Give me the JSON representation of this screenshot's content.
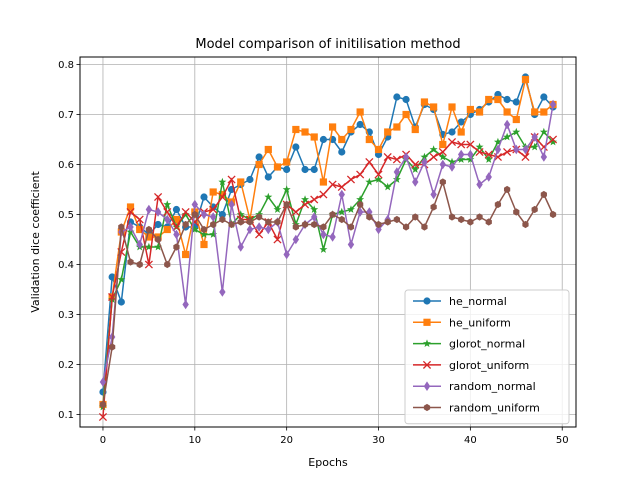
{
  "chart_data": {
    "type": "line",
    "title": "Model comparison of initilisation method",
    "xlabel": "Epochs",
    "ylabel": "Validation dice coefficient",
    "xlim": [
      -2.5,
      51.5
    ],
    "ylim": [
      0.075,
      0.815
    ],
    "xticks": [
      0,
      10,
      20,
      30,
      40,
      50
    ],
    "yticks": [
      0.1,
      0.2,
      0.3,
      0.4,
      0.5,
      0.6,
      0.7,
      0.8
    ],
    "grid": true,
    "legend_position": "lower-right",
    "x": [
      0,
      1,
      2,
      3,
      4,
      5,
      6,
      7,
      8,
      9,
      10,
      11,
      12,
      13,
      14,
      15,
      16,
      17,
      18,
      19,
      20,
      21,
      22,
      23,
      24,
      25,
      26,
      27,
      28,
      29,
      30,
      31,
      32,
      33,
      34,
      35,
      36,
      37,
      38,
      39,
      40,
      41,
      42,
      43,
      44,
      45,
      46,
      47,
      48,
      49
    ],
    "series": [
      {
        "name": "he_normal",
        "color": "#1f77b4",
        "marker": "circle",
        "values": [
          0.145,
          0.375,
          0.325,
          0.485,
          0.475,
          0.46,
          0.48,
          0.475,
          0.51,
          0.475,
          0.475,
          0.535,
          0.515,
          0.5,
          0.55,
          0.56,
          0.57,
          0.615,
          0.575,
          0.595,
          0.59,
          0.635,
          0.59,
          0.59,
          0.65,
          0.65,
          0.625,
          0.665,
          0.68,
          0.665,
          0.62,
          0.655,
          0.735,
          0.73,
          0.675,
          0.72,
          0.71,
          0.66,
          0.665,
          0.685,
          0.7,
          0.71,
          0.725,
          0.74,
          0.73,
          0.725,
          0.775,
          0.7,
          0.735,
          0.715
        ]
      },
      {
        "name": "he_uniform",
        "color": "#ff7f0e",
        "marker": "square",
        "values": [
          0.12,
          0.335,
          0.465,
          0.515,
          0.47,
          0.455,
          0.455,
          0.47,
          0.49,
          0.42,
          0.505,
          0.44,
          0.545,
          0.54,
          0.525,
          0.565,
          0.49,
          0.6,
          0.63,
          0.595,
          0.605,
          0.67,
          0.665,
          0.655,
          0.565,
          0.675,
          0.65,
          0.67,
          0.705,
          0.65,
          0.63,
          0.665,
          0.675,
          0.7,
          0.67,
          0.725,
          0.715,
          0.64,
          0.715,
          0.665,
          0.71,
          0.705,
          0.73,
          0.73,
          0.705,
          0.69,
          0.77,
          0.705,
          0.705,
          0.72
        ]
      },
      {
        "name": "glorot_normal",
        "color": "#2ca02c",
        "marker": "star",
        "values": [
          0.115,
          0.33,
          0.37,
          0.465,
          0.435,
          0.435,
          0.435,
          0.52,
          0.475,
          0.5,
          0.47,
          0.46,
          0.46,
          0.565,
          0.48,
          0.5,
          0.49,
          0.5,
          0.535,
          0.51,
          0.55,
          0.48,
          0.53,
          0.51,
          0.43,
          0.5,
          0.505,
          0.51,
          0.53,
          0.565,
          0.57,
          0.555,
          0.57,
          0.61,
          0.59,
          0.615,
          0.63,
          0.615,
          0.605,
          0.61,
          0.61,
          0.635,
          0.61,
          0.645,
          0.655,
          0.665,
          0.635,
          0.635,
          0.665,
          0.645
        ]
      },
      {
        "name": "glorot_uniform",
        "color": "#d62728",
        "marker": "x",
        "values": [
          0.095,
          0.335,
          0.425,
          0.505,
          0.49,
          0.4,
          0.535,
          0.505,
          0.475,
          0.505,
          0.485,
          0.505,
          0.51,
          0.535,
          0.57,
          0.49,
          0.49,
          0.46,
          0.485,
          0.45,
          0.52,
          0.505,
          0.52,
          0.53,
          0.54,
          0.56,
          0.555,
          0.57,
          0.58,
          0.605,
          0.58,
          0.615,
          0.61,
          0.62,
          0.6,
          0.6,
          0.615,
          0.625,
          0.645,
          0.64,
          0.64,
          0.625,
          0.62,
          0.615,
          0.625,
          0.63,
          0.615,
          0.655,
          0.635,
          0.65
        ]
      },
      {
        "name": "random_normal",
        "color": "#9467bd",
        "marker": "diamond",
        "values": [
          0.165,
          0.255,
          0.465,
          0.475,
          0.44,
          0.51,
          0.505,
          0.49,
          0.46,
          0.32,
          0.52,
          0.5,
          0.495,
          0.345,
          0.52,
          0.435,
          0.47,
          0.475,
          0.47,
          0.485,
          0.42,
          0.45,
          0.48,
          0.495,
          0.46,
          0.455,
          0.54,
          0.44,
          0.505,
          0.505,
          0.47,
          0.49,
          0.585,
          0.615,
          0.565,
          0.605,
          0.54,
          0.6,
          0.595,
          0.62,
          0.62,
          0.56,
          0.575,
          0.63,
          0.68,
          0.63,
          0.63,
          0.655,
          0.615,
          0.72
        ]
      },
      {
        "name": "random_uniform",
        "color": "#8c564b",
        "marker": "hexagon",
        "values": [
          0.12,
          0.235,
          0.475,
          0.405,
          0.4,
          0.47,
          0.45,
          0.4,
          0.435,
          0.48,
          0.5,
          0.47,
          0.48,
          0.49,
          0.48,
          0.485,
          0.485,
          0.495,
          0.485,
          0.485,
          0.52,
          0.475,
          0.48,
          0.48,
          0.475,
          0.5,
          0.49,
          0.475,
          0.52,
          0.495,
          0.48,
          0.485,
          0.49,
          0.475,
          0.495,
          0.475,
          0.515,
          0.565,
          0.495,
          0.49,
          0.485,
          0.495,
          0.485,
          0.52,
          0.55,
          0.505,
          0.48,
          0.51,
          0.54,
          0.5
        ]
      }
    ]
  }
}
